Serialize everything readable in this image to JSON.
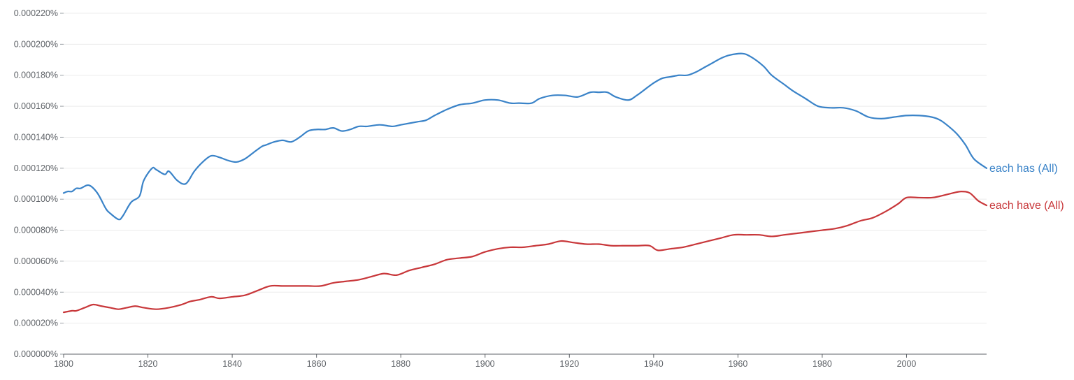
{
  "chart_data": {
    "type": "line",
    "title": "",
    "xlabel": "",
    "ylabel": "",
    "xlim": [
      1800,
      2019
    ],
    "ylim": [
      0,
      0.00022
    ],
    "grid": true,
    "x_ticks": [
      1800,
      1820,
      1840,
      1860,
      1880,
      1900,
      1920,
      1940,
      1960,
      1980,
      2000
    ],
    "x_tick_labels": [
      "1800",
      "1820",
      "1840",
      "1860",
      "1880",
      "1900",
      "1920",
      "1940",
      "1960",
      "1980",
      "2000"
    ],
    "y_ticks": [
      0,
      2e-05,
      4e-05,
      6e-05,
      8e-05,
      0.0001,
      0.00012,
      0.00014,
      0.00016,
      0.00018,
      0.0002,
      0.00022
    ],
    "y_tick_labels": [
      "0.000000%",
      "0.000020%",
      "0.000040%",
      "0.000060%",
      "0.000080%",
      "0.000100%",
      "0.000120%",
      "0.000140%",
      "0.000160%",
      "0.000180%",
      "0.000200%",
      "0.000220%"
    ],
    "legend_placement": "right, at series end",
    "series": [
      {
        "name": "each has (All)",
        "color": "#3a83c8",
        "x": [
          1800,
          1801,
          1802,
          1803,
          1804,
          1806,
          1808,
          1810,
          1811,
          1813,
          1814,
          1816,
          1818,
          1819,
          1821,
          1822,
          1824,
          1825,
          1827,
          1829,
          1831,
          1833,
          1835,
          1837,
          1839,
          1841,
          1843,
          1845,
          1847,
          1848,
          1850,
          1852,
          1854,
          1856,
          1858,
          1860,
          1862,
          1864,
          1866,
          1868,
          1870,
          1872,
          1875,
          1878,
          1880,
          1882,
          1884,
          1886,
          1888,
          1891,
          1894,
          1897,
          1900,
          1903,
          1906,
          1908,
          1911,
          1913,
          1916,
          1919,
          1922,
          1925,
          1927,
          1929,
          1931,
          1934,
          1936,
          1938,
          1940,
          1942,
          1944,
          1946,
          1948,
          1950,
          1952,
          1954,
          1956,
          1958,
          1961,
          1963,
          1966,
          1968,
          1971,
          1973,
          1976,
          1979,
          1982,
          1985,
          1988,
          1991,
          1994,
          1997,
          2000,
          2003,
          2006,
          2008,
          2010,
          2012,
          2014,
          2016,
          2019
        ],
        "values": [
          0.000104,
          0.000105,
          0.000105,
          0.000107,
          0.000107,
          0.000109,
          0.000104,
          9.4e-05,
          9.1e-05,
          8.7e-05,
          8.9e-05,
          9.8e-05,
          0.000102,
          0.000112,
          0.00012,
          0.000119,
          0.000116,
          0.000118,
          0.000112,
          0.00011,
          0.000118,
          0.000124,
          0.000128,
          0.000127,
          0.000125,
          0.000124,
          0.000126,
          0.00013,
          0.000134,
          0.000135,
          0.000137,
          0.000138,
          0.000137,
          0.00014,
          0.000144,
          0.000145,
          0.000145,
          0.000146,
          0.000144,
          0.000145,
          0.000147,
          0.000147,
          0.000148,
          0.000147,
          0.000148,
          0.000149,
          0.00015,
          0.000151,
          0.000154,
          0.000158,
          0.000161,
          0.000162,
          0.000164,
          0.000164,
          0.000162,
          0.000162,
          0.000162,
          0.000165,
          0.000167,
          0.000167,
          0.000166,
          0.000169,
          0.000169,
          0.000169,
          0.000166,
          0.000164,
          0.000167,
          0.000171,
          0.000175,
          0.000178,
          0.000179,
          0.00018,
          0.00018,
          0.000182,
          0.000185,
          0.000188,
          0.000191,
          0.000193,
          0.000194,
          0.000192,
          0.000186,
          0.00018,
          0.000174,
          0.00017,
          0.000165,
          0.00016,
          0.000159,
          0.000159,
          0.000157,
          0.000153,
          0.000152,
          0.000153,
          0.000154,
          0.000154,
          0.000153,
          0.000151,
          0.000147,
          0.000142,
          0.000135,
          0.000126,
          0.00012
        ]
      },
      {
        "name": "each have (All)",
        "color": "#c8373a",
        "x": [
          1800,
          1802,
          1803,
          1805,
          1807,
          1809,
          1811,
          1813,
          1815,
          1817,
          1819,
          1822,
          1825,
          1828,
          1830,
          1832,
          1835,
          1837,
          1840,
          1843,
          1846,
          1849,
          1852,
          1855,
          1858,
          1861,
          1864,
          1867,
          1870,
          1873,
          1876,
          1879,
          1882,
          1885,
          1888,
          1891,
          1894,
          1897,
          1900,
          1903,
          1906,
          1909,
          1912,
          1915,
          1918,
          1921,
          1924,
          1927,
          1930,
          1933,
          1936,
          1939,
          1941,
          1944,
          1947,
          1950,
          1953,
          1956,
          1959,
          1962,
          1965,
          1968,
          1971,
          1974,
          1977,
          1980,
          1983,
          1986,
          1989,
          1992,
          1995,
          1998,
          2000,
          2003,
          2006,
          2008,
          2011,
          2013,
          2015,
          2017,
          2019
        ],
        "values": [
          2.7e-05,
          2.8e-05,
          2.8e-05,
          3e-05,
          3.2e-05,
          3.1e-05,
          3e-05,
          2.9e-05,
          3e-05,
          3.1e-05,
          3e-05,
          2.9e-05,
          3e-05,
          3.2e-05,
          3.4e-05,
          3.5e-05,
          3.7e-05,
          3.6e-05,
          3.7e-05,
          3.8e-05,
          4.1e-05,
          4.4e-05,
          4.4e-05,
          4.4e-05,
          4.4e-05,
          4.4e-05,
          4.6e-05,
          4.7e-05,
          4.8e-05,
          5e-05,
          5.2e-05,
          5.1e-05,
          5.4e-05,
          5.6e-05,
          5.8e-05,
          6.1e-05,
          6.2e-05,
          6.3e-05,
          6.6e-05,
          6.8e-05,
          6.9e-05,
          6.9e-05,
          7e-05,
          7.1e-05,
          7.3e-05,
          7.2e-05,
          7.1e-05,
          7.1e-05,
          7e-05,
          7e-05,
          7e-05,
          7e-05,
          6.7e-05,
          6.8e-05,
          6.9e-05,
          7.1e-05,
          7.3e-05,
          7.5e-05,
          7.7e-05,
          7.7e-05,
          7.7e-05,
          7.6e-05,
          7.7e-05,
          7.8e-05,
          7.9e-05,
          8e-05,
          8.1e-05,
          8.3e-05,
          8.6e-05,
          8.8e-05,
          9.2e-05,
          9.7e-05,
          0.000101,
          0.000101,
          0.000101,
          0.000102,
          0.000104,
          0.000105,
          0.000104,
          9.9e-05,
          9.6e-05
        ]
      }
    ]
  }
}
